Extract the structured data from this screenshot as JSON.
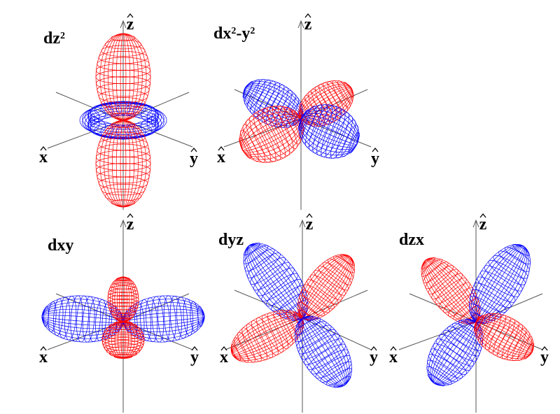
{
  "panels": [
    {
      "title": [
        {
          "text": "dz",
          "sup": "2"
        }
      ],
      "axes": {
        "x": "x",
        "y": "y",
        "z": "z"
      }
    },
    {
      "title": [
        {
          "text": "dx",
          "sup": "2"
        },
        {
          "text": "-y",
          "sup": "2"
        }
      ],
      "axes": {
        "x": "x",
        "y": "y",
        "z": "z"
      }
    },
    {
      "title": [
        {
          "text": "dxy"
        }
      ],
      "axes": {
        "x": "x",
        "y": "y",
        "z": "z"
      }
    },
    {
      "title": [
        {
          "text": "dyz"
        }
      ],
      "axes": {
        "x": "x",
        "y": "y",
        "z": "z"
      }
    },
    {
      "title": [
        {
          "text": "dzx"
        }
      ],
      "axes": {
        "x": "x",
        "y": "y",
        "z": "z"
      }
    }
  ]
}
